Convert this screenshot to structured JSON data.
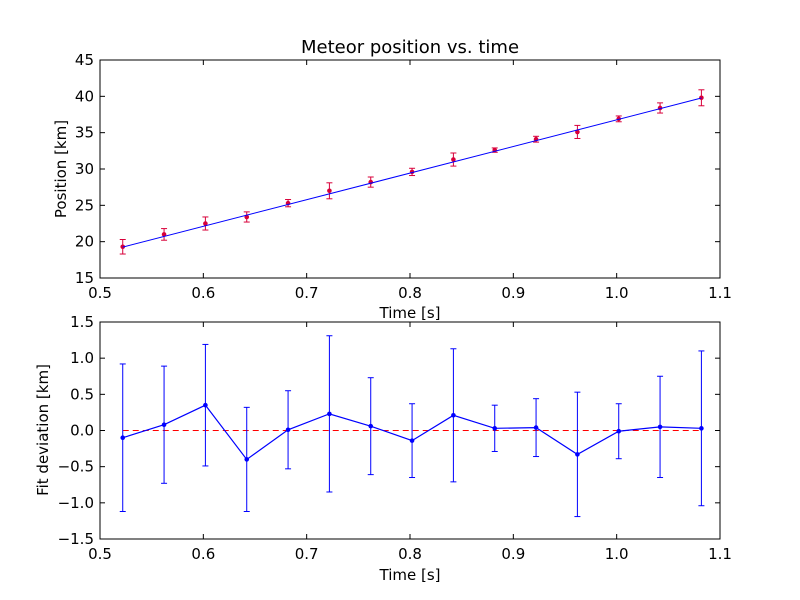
{
  "chart_data": [
    {
      "type": "scatter",
      "title": "Meteor position vs. time",
      "xlabel": "Time [s]",
      "ylabel": "Position [km]",
      "xlim": [
        0.5,
        1.1
      ],
      "ylim": [
        15,
        45
      ],
      "xticks": [
        "0.5",
        "0.6",
        "0.7",
        "0.8",
        "0.9",
        "1.0",
        "1.1"
      ],
      "yticks": [
        "15",
        "20",
        "25",
        "30",
        "35",
        "40",
        "45"
      ],
      "grid": false,
      "series": [
        {
          "kind": "points-with-errorbars",
          "color": "#d8003a",
          "x": [
            0.522,
            0.562,
            0.602,
            0.642,
            0.682,
            0.722,
            0.762,
            0.802,
            0.842,
            0.882,
            0.922,
            0.962,
            1.002,
            1.042,
            1.082
          ],
          "y": [
            19.3,
            21.0,
            22.5,
            23.4,
            25.3,
            27.0,
            28.2,
            29.6,
            31.3,
            32.6,
            34.1,
            35.1,
            36.9,
            38.4,
            39.8
          ],
          "yerr": [
            1.0,
            0.8,
            0.9,
            0.7,
            0.5,
            1.1,
            0.7,
            0.5,
            0.9,
            0.3,
            0.4,
            0.9,
            0.4,
            0.7,
            1.1
          ]
        },
        {
          "kind": "fit-line",
          "color": "#0000ff",
          "x": [
            0.522,
            1.082
          ],
          "y": [
            19.25,
            39.77
          ]
        }
      ]
    },
    {
      "type": "line",
      "title": "",
      "xlabel": "Time [s]",
      "ylabel": "Fit deviation [km]",
      "xlim": [
        0.5,
        1.1
      ],
      "ylim": [
        -1.5,
        1.5
      ],
      "xticks": [
        "0.5",
        "0.6",
        "0.7",
        "0.8",
        "0.9",
        "1.0",
        "1.1"
      ],
      "yticks": [
        "−1.5",
        "−1.0",
        "−0.5",
        "0.0",
        "0.5",
        "1.0",
        "1.5"
      ],
      "grid": false,
      "zero_line_color": "#ff0000",
      "series": [
        {
          "kind": "line-with-errorbars",
          "color": "#0000ff",
          "x": [
            0.522,
            0.562,
            0.602,
            0.642,
            0.682,
            0.722,
            0.762,
            0.802,
            0.842,
            0.882,
            0.922,
            0.962,
            1.002,
            1.042,
            1.082
          ],
          "y": [
            -0.1,
            0.08,
            0.35,
            -0.4,
            0.01,
            0.23,
            0.06,
            -0.14,
            0.21,
            0.03,
            0.04,
            -0.33,
            -0.01,
            0.05,
            0.03
          ],
          "yerr": [
            1.02,
            0.81,
            0.84,
            0.72,
            0.54,
            1.08,
            0.67,
            0.51,
            0.92,
            0.32,
            0.4,
            0.86,
            0.38,
            0.7,
            1.07
          ]
        }
      ]
    }
  ]
}
